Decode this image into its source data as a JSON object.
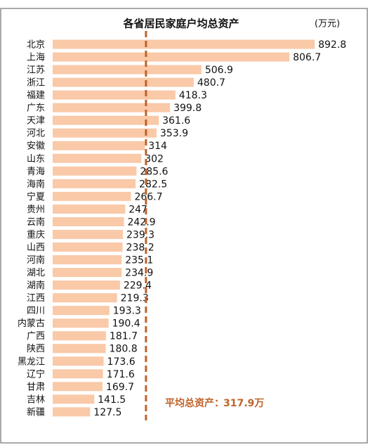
{
  "chart_data": {
    "type": "hbar",
    "title": "各省居民家庭户均总资产",
    "unit": "(万元)",
    "categories": [
      "北京",
      "上海",
      "江苏",
      "浙江",
      "福建",
      "广东",
      "天津",
      "河北",
      "安徽",
      "山东",
      "青海",
      "海南",
      "宁夏",
      "贵州",
      "云南",
      "重庆",
      "山西",
      "河南",
      "湖北",
      "湖南",
      "江西",
      "四川",
      "内蒙古",
      "广西",
      "陕西",
      "黑龙江",
      "辽宁",
      "甘肃",
      "吉林",
      "新疆"
    ],
    "values": [
      892.8,
      806.7,
      506.9,
      480.7,
      418.3,
      399.8,
      361.6,
      353.9,
      314,
      302,
      285.6,
      282.5,
      266.7,
      247,
      242.9,
      239.3,
      238.2,
      235.1,
      234.9,
      229.4,
      219.3,
      193.3,
      190.4,
      181.7,
      180.8,
      173.6,
      171.6,
      169.7,
      141.5,
      127.5
    ],
    "color": "#f9c9a8",
    "xlim": [
      0,
      950
    ],
    "average_line": {
      "label": "平均总资产：",
      "value": 317.9,
      "value_label": "317.9万",
      "color": "#c0622a"
    }
  }
}
